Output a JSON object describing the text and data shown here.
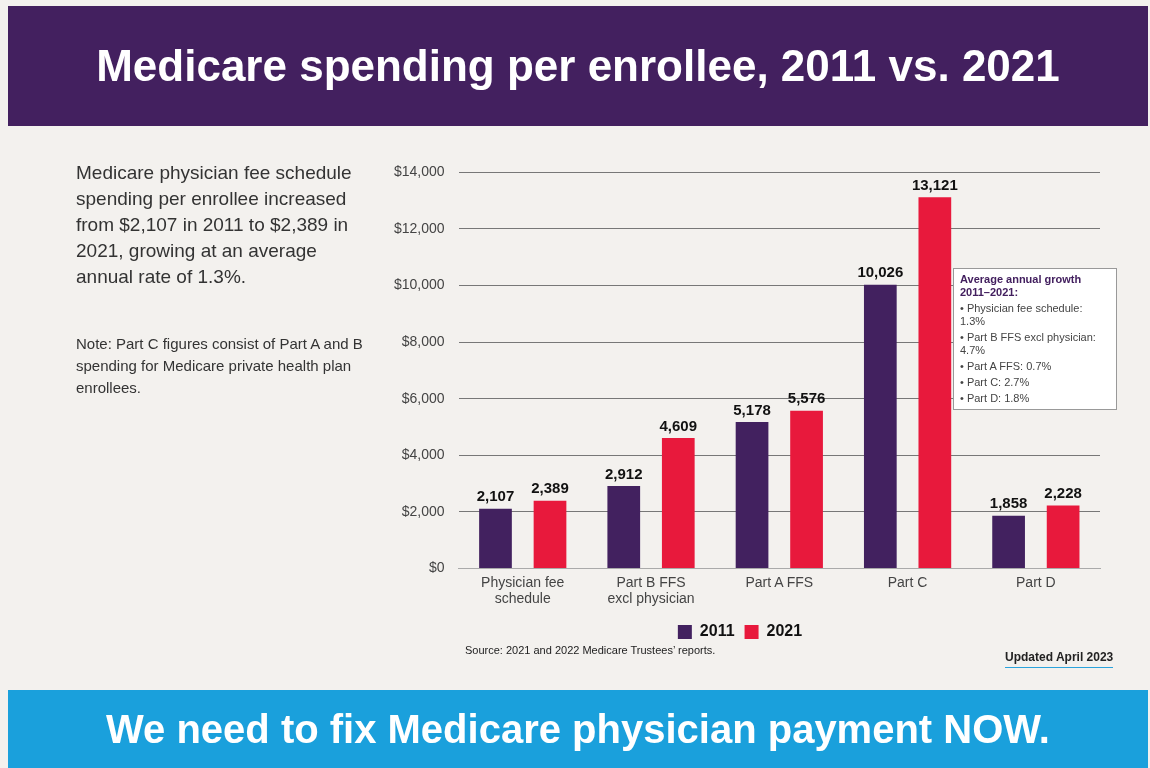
{
  "chart_data": {
    "type": "bar",
    "title": "Medicare spending per enrollee, 2011 vs. 2021",
    "categories": [
      "Physician fee schedule",
      "Part B FFS excl physician",
      "Part A FFS",
      "Part C",
      "Part D"
    ],
    "series": [
      {
        "name": "2011",
        "color": "#42215f",
        "values": [
          2107,
          2912,
          5178,
          10026,
          1858
        ],
        "value_labels": [
          "2,107",
          "2,912",
          "5,178",
          "10,026",
          "1,858"
        ]
      },
      {
        "name": "2021",
        "color": "#e8193c",
        "values": [
          2389,
          4609,
          5576,
          13121,
          2228
        ],
        "value_labels": [
          "2,389",
          "4,609",
          "5,576",
          "13,121",
          "2,228"
        ]
      }
    ],
    "ylim": [
      0,
      14000
    ],
    "yticks": [
      {
        "value": 0,
        "label": "$0"
      },
      {
        "value": 2000,
        "label": "$2,000"
      },
      {
        "value": 4000,
        "label": "$4,000"
      },
      {
        "value": 6000,
        "label": "$6,000"
      },
      {
        "value": 8000,
        "label": "$8,000"
      },
      {
        "value": 10000,
        "label": "$10,000"
      },
      {
        "value": 12000,
        "label": "$12,000"
      },
      {
        "value": 14000,
        "label": "$14,000"
      }
    ],
    "grid": "y",
    "legend": "bottom",
    "annotations": [
      "Medicare physician fee schedule spending per enrollee increased from $2,107 in 2011 to $2,389 in 2021, growing at an average annual rate of 1.3%.",
      "Note: Part C figures consist of Part A and B spending for Medicare private health plan enrollees.",
      "Average annual growth 2011–2021:",
      "• Physician fee schedule: 1.3%",
      "• Part B FFS excl physician: 4.7%",
      "• Part A FFS: 0.7%",
      "• Part C: 2.7%",
      "• Part D: 1.8%",
      "Source: 2021 and 2022 Medicare Trustees’ reports.",
      "Updated April 2023",
      "We need to fix Medicare physician payment NOW."
    ]
  }
}
